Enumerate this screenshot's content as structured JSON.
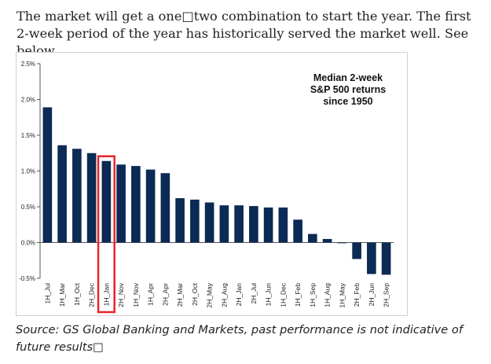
{
  "intro_text": "The market will get a one□two combination to start the year. The first 2-week period of the year has historically served the market well. See below",
  "source_text": "Source: GS Global Banking and Markets, past performance is not indicative of future results□",
  "colors": {
    "bar": "#0b2a55",
    "highlight": "#e8242c",
    "text": "#222222"
  },
  "chart_data": {
    "type": "bar",
    "title": "Median 2-week S&P 500 returns since 1950",
    "title_lines": [
      "Median 2-week",
      "S&P 500 returns",
      "since 1950"
    ],
    "xlabel": "",
    "ylabel": "",
    "ylim": [
      -0.5,
      2.5
    ],
    "yticks": [
      2.5,
      2.0,
      1.5,
      1.0,
      0.5,
      0.0,
      -0.5
    ],
    "ytick_labels": [
      "2.5%",
      "2.0%",
      "1.5%",
      "1.0%",
      "0.5%",
      "0.0%",
      "-0.5%"
    ],
    "grid": false,
    "highlight_category": "1H_Jan",
    "categories": [
      "1H_Jul",
      "1H_Mar",
      "1H_Oct",
      "2H_Dec",
      "1H_Jan",
      "2H_Nov",
      "1H_Nov",
      "1H_Apr",
      "2H_Apr",
      "2H_Mar",
      "2H_Oct",
      "2H_May",
      "2H_Aug",
      "2H_Jan",
      "2H_Jul",
      "1H_Jun",
      "1H_Dec",
      "1H_Feb",
      "1H_Sep",
      "1H_Aug",
      "1H_May",
      "2H_Feb",
      "2H_Jun",
      "2H_Sep"
    ],
    "values": [
      1.89,
      1.36,
      1.31,
      1.25,
      1.14,
      1.09,
      1.07,
      1.02,
      0.97,
      0.62,
      0.6,
      0.56,
      0.52,
      0.52,
      0.51,
      0.49,
      0.49,
      0.32,
      0.12,
      0.05,
      -0.01,
      -0.23,
      -0.44,
      -0.45
    ]
  }
}
